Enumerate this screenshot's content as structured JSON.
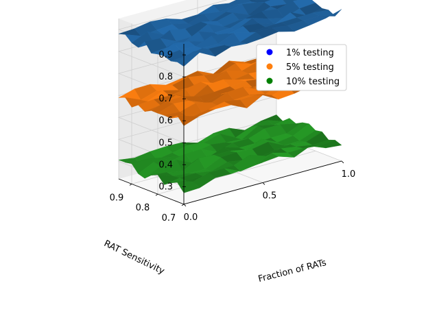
{
  "chart_data": {
    "type": "surface3d",
    "title": "",
    "xlabel": "Fraction of RATs",
    "ylabel": "RAT Sensitivity",
    "zlabel": "",
    "x_ticks": [
      "0.0",
      "0.5",
      "1.0"
    ],
    "y_ticks": [
      "0.7",
      "0.8",
      "0.9"
    ],
    "z_ticks": [
      "0.3",
      "0.4",
      "0.5",
      "0.6",
      "0.7",
      "0.8",
      "0.9"
    ],
    "xlim": [
      0,
      1
    ],
    "ylim": [
      0.7,
      0.95
    ],
    "zlim": [
      0.22,
      0.95
    ],
    "grid": true,
    "legend_position": "top-right",
    "series": [
      {
        "name": "1% testing",
        "color": "#1f5f99",
        "legend_color": "#0000ff",
        "z_level": 0.88
      },
      {
        "name": "5% testing",
        "color": "#e0700e",
        "legend_color": "#ff7f0e",
        "z_level": 0.6
      },
      {
        "name": "10% testing",
        "color": "#228b22",
        "legend_color": "#008000",
        "z_level": 0.3
      }
    ]
  }
}
